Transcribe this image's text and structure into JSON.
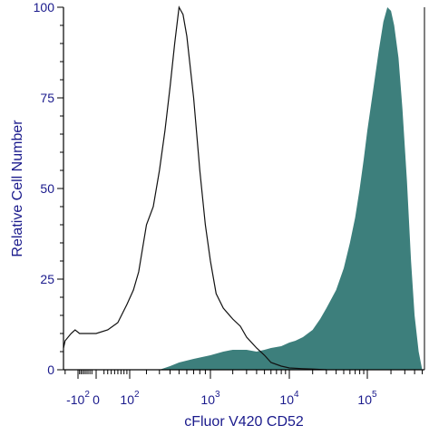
{
  "chart_data": {
    "type": "area",
    "xlabel": "cFluor V420 CD52",
    "ylabel": "Relative Cell Number",
    "x_scale": "biexponential",
    "ylim": [
      0,
      100
    ],
    "y_ticks": [
      "0",
      "25",
      "50",
      "75",
      "100"
    ],
    "x_ticks": [
      {
        "base": "-10",
        "exp": "2",
        "value": -100
      },
      {
        "base": "0",
        "exp": "",
        "value": 0
      },
      {
        "base": "10",
        "exp": "2",
        "value": 100
      },
      {
        "base": "10",
        "exp": "3",
        "value": 1000
      },
      {
        "base": "10",
        "exp": "4",
        "value": 10000
      },
      {
        "base": "10",
        "exp": "5",
        "value": 100000
      }
    ],
    "colors": {
      "stained_fill": "#3d7f7c",
      "control_line": "#111111",
      "axis_text": "#1a1a8c"
    },
    "series": [
      {
        "role": "control",
        "style": "line",
        "x": [
          -330,
          -250,
          -200,
          -150,
          -120,
          -90,
          -50,
          0,
          30,
          60,
          90,
          120,
          150,
          200,
          250,
          300,
          350,
          400,
          450,
          500,
          550,
          600,
          700,
          800,
          900,
          1000,
          1200,
          1500,
          2000,
          2500,
          3000,
          4000,
          5000,
          6000,
          8000,
          10000,
          15000,
          20000,
          30000
        ],
        "y": [
          6,
          6,
          8,
          10,
          11,
          10,
          10,
          10,
          11,
          13,
          18,
          22,
          27,
          40,
          45,
          55,
          66,
          78,
          90,
          100,
          98,
          92,
          75,
          55,
          40,
          30,
          21,
          17,
          14,
          12,
          9,
          6,
          4,
          2,
          1,
          0.5,
          0.3,
          0.2,
          0
        ]
      },
      {
        "role": "stained",
        "style": "filled",
        "x": [
          300,
          400,
          500,
          700,
          1000,
          1500,
          2000,
          3000,
          4000,
          5000,
          6000,
          8000,
          10000,
          12000,
          15000,
          20000,
          25000,
          30000,
          40000,
          50000,
          60000,
          70000,
          80000,
          90000,
          100000,
          120000,
          140000,
          160000,
          180000,
          200000,
          220000,
          250000,
          280000,
          320000,
          360000,
          400000,
          450000,
          500000
        ],
        "y": [
          0,
          1,
          2,
          3,
          4,
          5,
          5.5,
          5.5,
          5,
          5.5,
          6,
          6.5,
          7.5,
          8,
          9,
          11,
          14,
          17,
          22,
          28,
          35,
          42,
          50,
          58,
          66,
          78,
          88,
          96,
          100,
          99,
          95,
          86,
          72,
          52,
          30,
          15,
          5,
          0
        ]
      }
    ]
  }
}
